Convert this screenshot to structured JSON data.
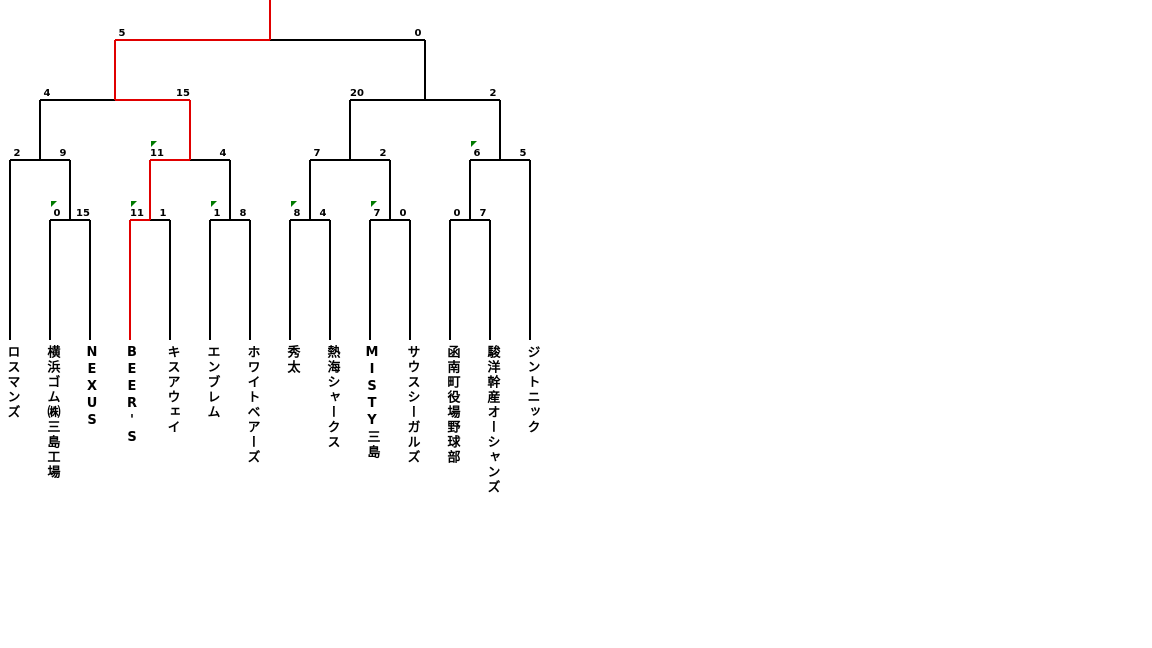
{
  "colors": {
    "win": "#e00000",
    "lose": "#000000",
    "flag": "#007a00"
  },
  "teams": [
    "ロスマンズ",
    "横浜ゴム㈱三島工場",
    "NEXUS",
    "BEER'S",
    "キスアウェイ",
    "エンブレム",
    "ホワイトベアーズ",
    "秀太",
    "熱海シャークス",
    "MISTY三島",
    "サウスシーガルズ",
    "函南町役場野球部",
    "駿洋幹産オーシャンズ",
    "ジントニック"
  ],
  "matches": [
    {
      "id": "r1a",
      "left": "t1",
      "right": "t2",
      "ls": "0",
      "rs": "15",
      "winner": "right",
      "flag": "left"
    },
    {
      "id": "r1b",
      "left": "t3",
      "right": "t4",
      "ls": "11",
      "rs": "1",
      "winner": "left",
      "flag": "left"
    },
    {
      "id": "r1c",
      "left": "t5",
      "right": "t6",
      "ls": "1",
      "rs": "8",
      "winner": "right",
      "flag": "left"
    },
    {
      "id": "r1d",
      "left": "t7",
      "right": "t8",
      "ls": "8",
      "rs": "4",
      "winner": "left",
      "flag": "left"
    },
    {
      "id": "r1e",
      "left": "t9",
      "right": "t10",
      "ls": "7",
      "rs": "0",
      "winner": "left",
      "flag": "left"
    },
    {
      "id": "r1f",
      "left": "t11",
      "right": "t12",
      "ls": "0",
      "rs": "7",
      "winner": "right",
      "flag": ""
    },
    {
      "id": "r2a",
      "left": "t0",
      "right": "r1a",
      "ls": "2",
      "rs": "9",
      "winner": "right",
      "flag": ""
    },
    {
      "id": "r2b",
      "left": "r1b",
      "right": "r1c",
      "ls": "11",
      "rs": "4",
      "winner": "left",
      "flag": "left"
    },
    {
      "id": "r2c",
      "left": "r1d",
      "right": "r1e",
      "ls": "7",
      "rs": "2",
      "winner": "left",
      "flag": ""
    },
    {
      "id": "r2d",
      "left": "r1f",
      "right": "t13",
      "ls": "6",
      "rs": "5",
      "winner": "left",
      "flag": "left"
    },
    {
      "id": "sfa",
      "left": "r2a",
      "right": "r2b",
      "ls": "4",
      "rs": "15",
      "winner": "right",
      "flag": ""
    },
    {
      "id": "sfb",
      "left": "r2c",
      "right": "r2d",
      "ls": "20",
      "rs": "2",
      "winner": "left",
      "flag": ""
    },
    {
      "id": "final",
      "left": "sfa",
      "right": "sfb",
      "ls": "5",
      "rs": "0",
      "winner": "left",
      "flag": ""
    }
  ]
}
